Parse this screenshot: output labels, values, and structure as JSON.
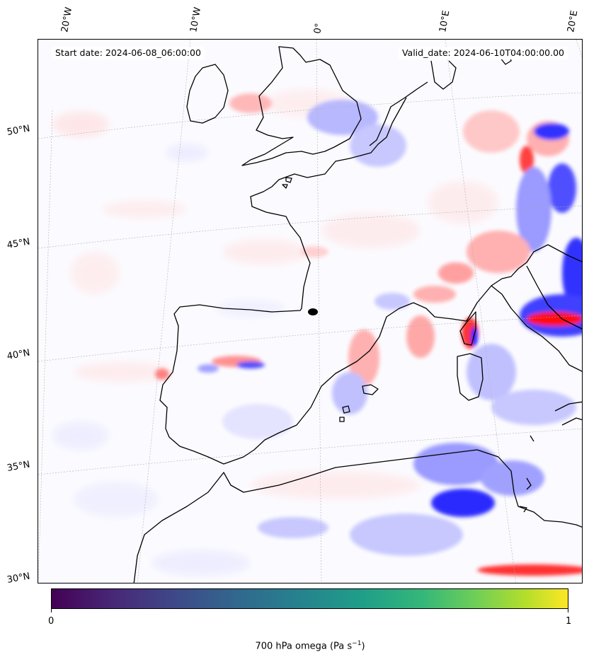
{
  "header": {
    "start_date": "Start date: 2024-06-08_06:00:00",
    "valid_date": "Valid_date: 2024-06-10T04:00:00.00"
  },
  "map": {
    "projection": "lambert-conformal",
    "lon_range": [
      -20,
      20
    ],
    "lat_range": [
      30,
      55
    ],
    "gridlines": true,
    "field": "700 hPa omega",
    "positive_color": "#e8000b",
    "negative_color": "#1a1aff",
    "coastline_color": "#000000",
    "latitude_labels": [
      "30°N",
      "35°N",
      "40°N",
      "45°N",
      "50°N"
    ],
    "longitude_labels": [
      "20°W",
      "10°W",
      "0°",
      "10°E",
      "20°E"
    ]
  },
  "colorbar": {
    "colormap": "viridis",
    "min_label": "0",
    "max_label": "1",
    "title": "700 hPa omega (Pa s",
    "title_sup": "−1",
    "title_end": ")"
  }
}
